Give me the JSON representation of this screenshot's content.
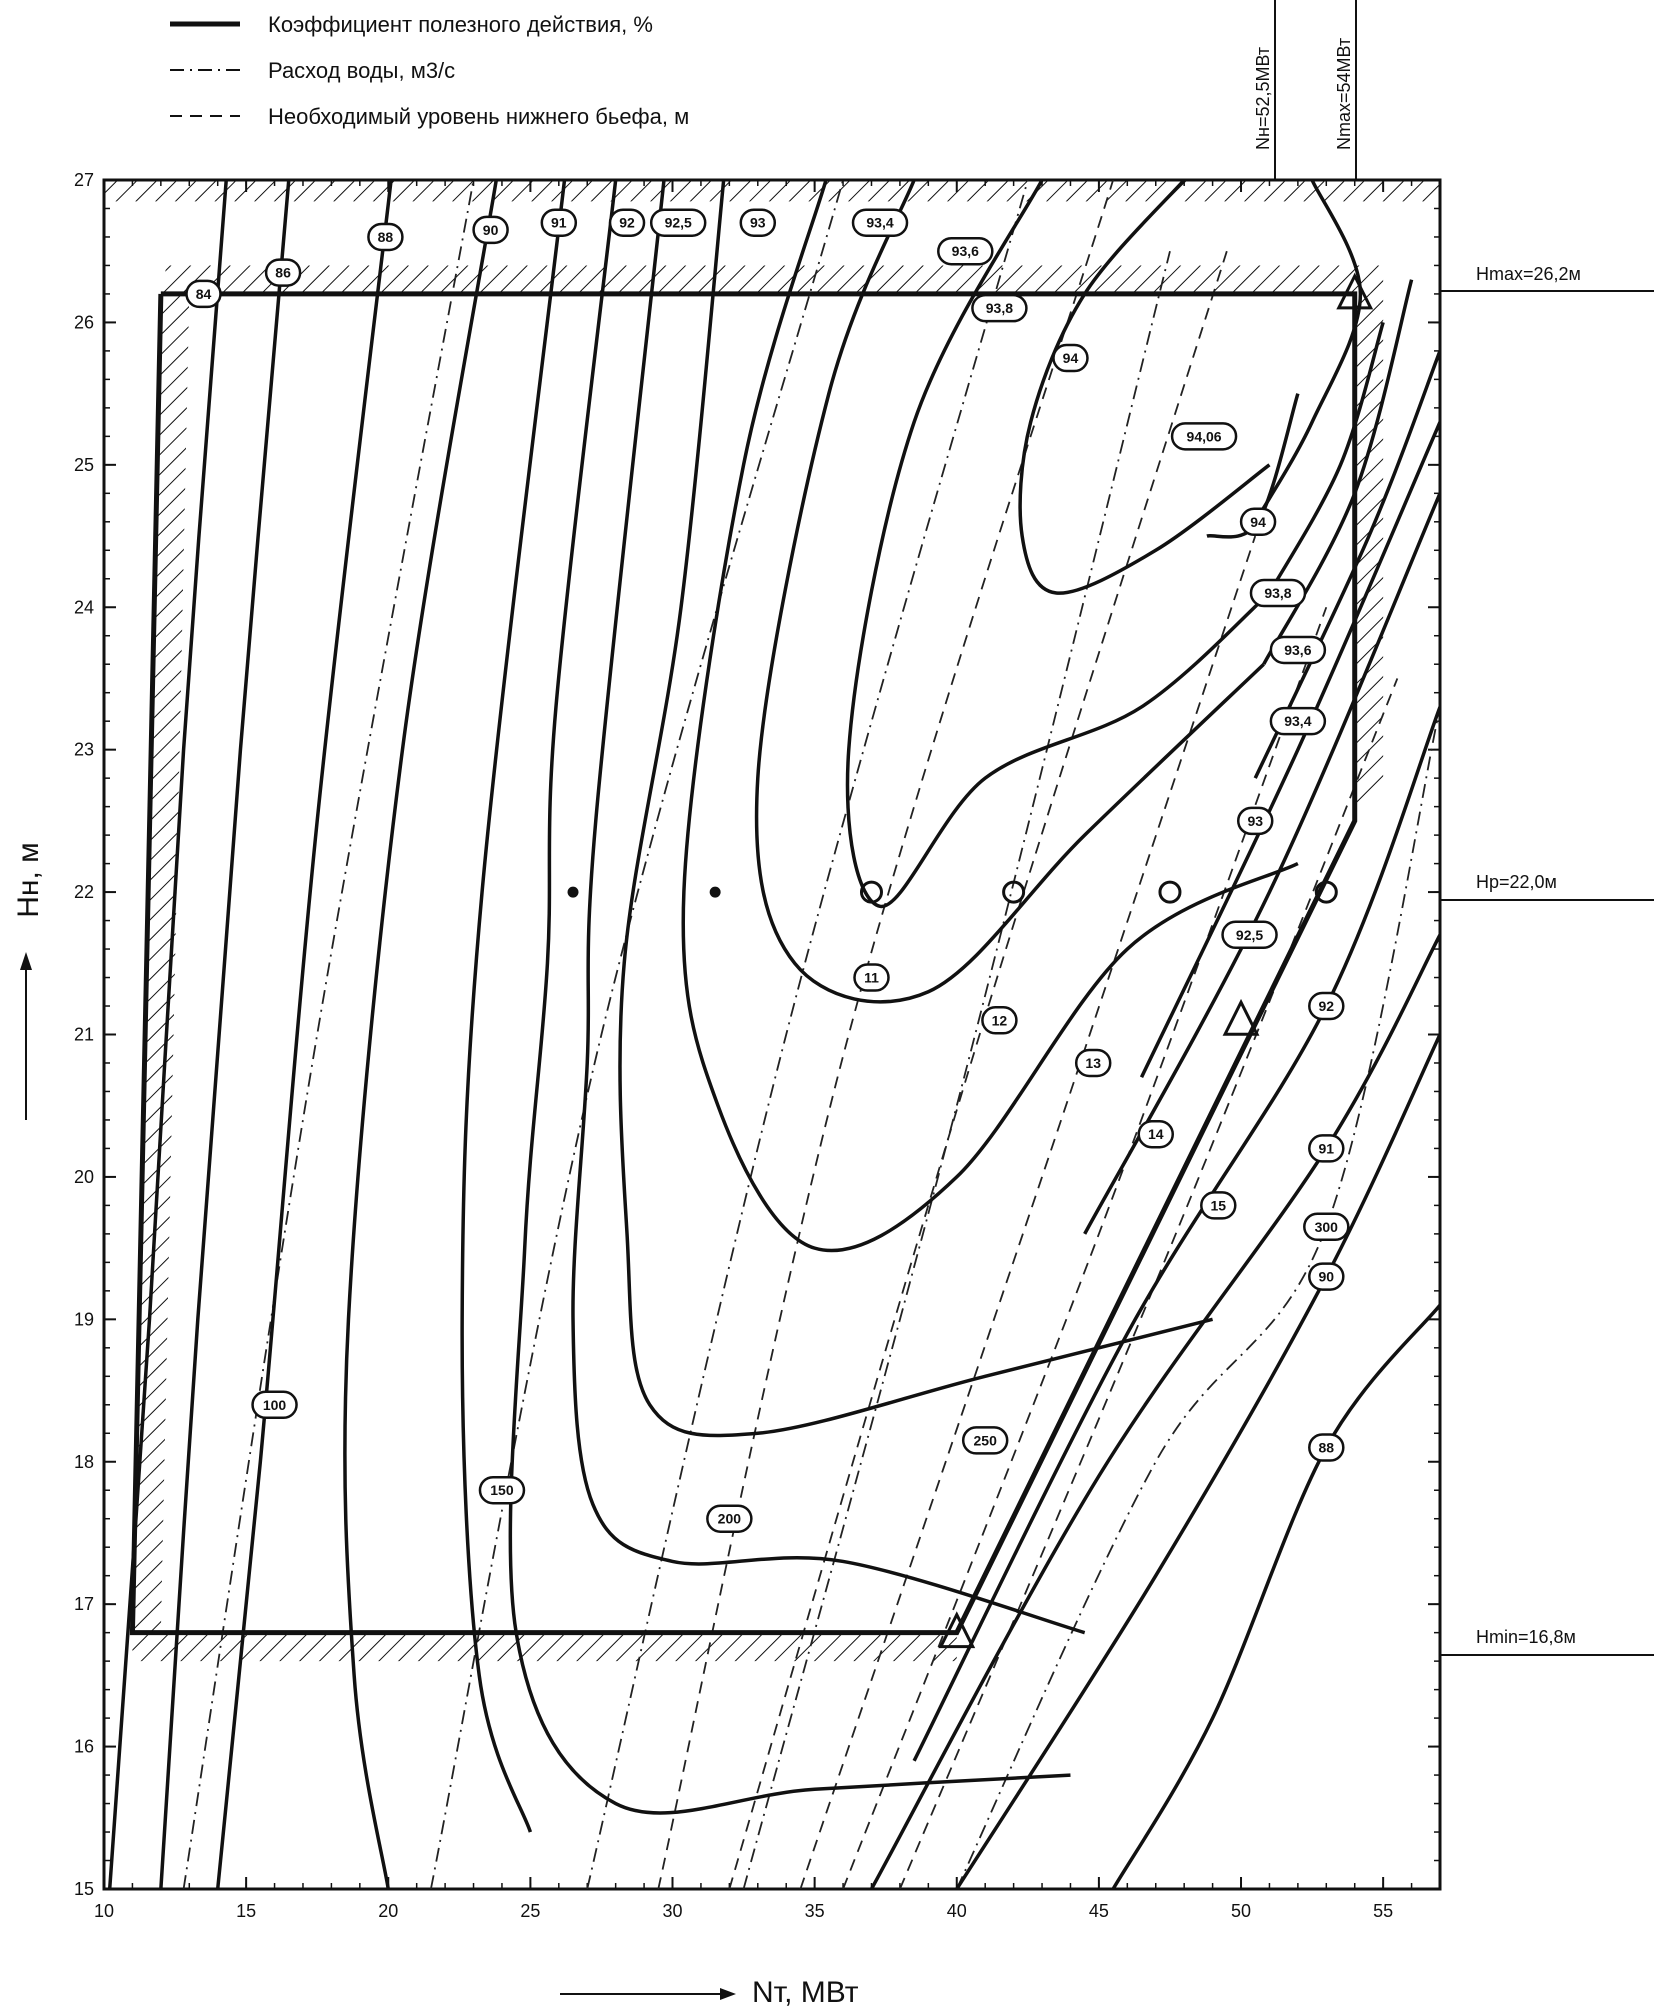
{
  "legend": [
    {
      "key": "efficiency",
      "label": "Коэффициент полезного действия, %"
    },
    {
      "key": "flow",
      "label": "Расход воды, м3/с"
    },
    {
      "key": "tailwater",
      "label": "Необходимый уровень нижнего бьефа, м"
    }
  ],
  "axes": {
    "x_label": "Nт, МВт",
    "y_label": "Hн, м",
    "x_ticks": [
      "10",
      "15",
      "20",
      "25",
      "30",
      "35",
      "40",
      "45",
      "50",
      "55"
    ],
    "y_ticks": [
      "15",
      "16",
      "17",
      "18",
      "19",
      "20",
      "21",
      "22",
      "23",
      "24",
      "25",
      "26",
      "27"
    ]
  },
  "markers": {
    "n_rated": "Nн=52,5МВт",
    "n_max": "Nmax=54МВт",
    "h_max": "Hmax=26,2м",
    "h_rated": "Hр=22,0м",
    "h_min": "Hmin=16,8м"
  },
  "chart_data": {
    "type": "line",
    "xlabel": "Nт, МВт",
    "ylabel": "Hн, м",
    "xlim": [
      10,
      57
    ],
    "ylim": [
      15,
      27
    ],
    "grid": false,
    "legend_position": "top-left",
    "reference_lines": {
      "N_rated_MW": 52.5,
      "N_max_MW": 54,
      "H_max_m": 26.2,
      "H_rated_m": 22.0,
      "H_min_m": 16.8
    },
    "operating_zone": [
      [
        12,
        26.2
      ],
      [
        54,
        26.2
      ],
      [
        54,
        22.5
      ],
      [
        40,
        16.8
      ],
      [
        11,
        16.8
      ],
      [
        12,
        26.2
      ]
    ],
    "efficiency_isolines": [
      {
        "value": "84",
        "label_at": [
          13.5,
          26.2
        ],
        "points": [
          [
            10.2,
            15
          ],
          [
            11.6,
            19
          ],
          [
            12.8,
            23
          ],
          [
            14.3,
            27
          ]
        ]
      },
      {
        "value": "86",
        "label_at": [
          16.3,
          26.35
        ],
        "points": [
          [
            12.0,
            15
          ],
          [
            13.3,
            19
          ],
          [
            14.8,
            23
          ],
          [
            16.5,
            27
          ]
        ]
      },
      {
        "value": "88",
        "label_at": [
          19.9,
          26.6
        ],
        "points": [
          [
            14.0,
            15
          ],
          [
            15.5,
            18
          ],
          [
            17.5,
            22.5
          ],
          [
            20.1,
            27
          ]
        ]
      },
      {
        "value": "90",
        "label_at": [
          23.6,
          26.65
        ],
        "points": [
          [
            20.0,
            15
          ],
          [
            18.8,
            16.5
          ],
          [
            18.6,
            19
          ],
          [
            20.5,
            23
          ],
          [
            23.8,
            27
          ]
        ]
      },
      {
        "value": "91",
        "label_at": [
          26.0,
          26.7
        ],
        "points": [
          [
            25.0,
            15.4
          ],
          [
            23.2,
            16.5
          ],
          [
            22.6,
            19
          ],
          [
            23.3,
            22
          ],
          [
            26.2,
            27
          ]
        ]
      },
      {
        "value": "92",
        "label_at": [
          28.4,
          26.7
        ],
        "points": [
          [
            44.0,
            15.8
          ],
          [
            35.0,
            15.7
          ],
          [
            28.0,
            15.6
          ],
          [
            24.5,
            16.8
          ],
          [
            24.8,
            19.5
          ],
          [
            25.6,
            21.5
          ],
          [
            25.9,
            23.3
          ],
          [
            28.0,
            27
          ]
        ]
      },
      {
        "value": "92,5",
        "label_at": [
          30.2,
          26.7
        ],
        "points": [
          [
            44.5,
            16.8
          ],
          [
            36.0,
            17.3
          ],
          [
            30.0,
            17.3
          ],
          [
            27.2,
            17.7
          ],
          [
            26.5,
            19.0
          ],
          [
            27.0,
            20.8
          ],
          [
            27.3,
            22.5
          ],
          [
            29.7,
            27
          ]
        ]
      },
      {
        "value": "93",
        "label_at": [
          33.0,
          26.7
        ],
        "points": [
          [
            49.0,
            19.0
          ],
          [
            41.0,
            18.6
          ],
          [
            33.0,
            18.2
          ],
          [
            29.2,
            18.4
          ],
          [
            28.4,
            19.6
          ],
          [
            28.3,
            21.5
          ],
          [
            30.3,
            24.0
          ],
          [
            31.8,
            27
          ]
        ]
      },
      {
        "value": "93,4",
        "label_at": [
          37.3,
          26.7
        ],
        "points": [
          [
            52.0,
            22.2
          ],
          [
            46.0,
            21.6
          ],
          [
            40.0,
            20.0
          ],
          [
            35.0,
            19.5
          ],
          [
            31.6,
            20.5
          ],
          [
            30.4,
            22.0
          ],
          [
            32.5,
            25.0
          ],
          [
            35.4,
            27
          ]
        ]
      },
      {
        "value": "93,6",
        "label_at": [
          40.3,
          26.5
        ],
        "points": [
          [
            50.8,
            23.6
          ],
          [
            44.5,
            22.4
          ],
          [
            39.0,
            21.3
          ],
          [
            34.3,
            21.5
          ],
          [
            33.0,
            22.8
          ],
          [
            35.5,
            25.5
          ],
          [
            38.5,
            27
          ]
        ]
      },
      {
        "value": "93,8",
        "label_at": [
          41.5,
          26.1
        ],
        "points": [
          [
            51.0,
            24.1
          ],
          [
            46.5,
            23.3
          ],
          [
            41.0,
            22.8
          ],
          [
            37.3,
            21.9
          ],
          [
            36.2,
            23.0
          ],
          [
            38.5,
            25.3
          ],
          [
            43.0,
            27
          ]
        ]
      },
      {
        "value": "94",
        "label_at": [
          44.0,
          25.75
        ],
        "points": [
          [
            51.0,
            25.0
          ],
          [
            47.0,
            24.4
          ],
          [
            43.5,
            24.1
          ],
          [
            42.3,
            24.5
          ],
          [
            42.6,
            25.3
          ],
          [
            44.5,
            26.2
          ],
          [
            48.0,
            27
          ]
        ]
      },
      {
        "value": "94,06",
        "label_at": [
          48.7,
          25.2
        ],
        "points": [
          [
            50.5,
            24.6
          ],
          [
            52.5,
            25.3
          ],
          [
            54.2,
            26.2
          ],
          [
            52.5,
            27
          ]
        ]
      },
      {
        "value": "94",
        "label_at": [
          50.6,
          24.6
        ],
        "points": [
          [
            48.8,
            24.5
          ],
          [
            50.6,
            24.6
          ],
          [
            52.0,
            25.5
          ]
        ]
      },
      {
        "value": "93,8",
        "label_at": [
          51.3,
          24.1
        ],
        "points": [
          [
            51.0,
            24.1
          ],
          [
            53.5,
            25.0
          ],
          [
            55.0,
            26.0
          ]
        ]
      },
      {
        "value": "93,6",
        "label_at": [
          52.0,
          23.7
        ],
        "points": [
          [
            50.8,
            23.6
          ],
          [
            54.0,
            24.8
          ],
          [
            56.0,
            26.3
          ]
        ]
      },
      {
        "value": "93,4",
        "label_at": [
          52.0,
          23.2
        ],
        "points": [
          [
            50.5,
            22.8
          ],
          [
            54.5,
            24.5
          ],
          [
            57.0,
            25.8
          ]
        ]
      },
      {
        "value": "93",
        "label_at": [
          50.5,
          22.5
        ],
        "points": [
          [
            46.5,
            20.7
          ],
          [
            52.0,
            23.0
          ],
          [
            57.0,
            25.3
          ]
        ]
      },
      {
        "value": "92,5",
        "label_at": [
          50.3,
          21.7
        ],
        "points": [
          [
            44.5,
            19.6
          ],
          [
            51.0,
            22.0
          ],
          [
            57.0,
            24.8
          ]
        ]
      },
      {
        "value": "92",
        "label_at": [
          53.0,
          21.2
        ],
        "points": [
          [
            38.5,
            15.9
          ],
          [
            46.0,
            18.9
          ],
          [
            53.0,
            21.2
          ],
          [
            57.0,
            23.3
          ]
        ]
      },
      {
        "value": "91",
        "label_at": [
          53.0,
          20.2
        ],
        "points": [
          [
            37.0,
            15.0
          ],
          [
            45.0,
            17.9
          ],
          [
            53.0,
            20.2
          ],
          [
            57.0,
            21.7
          ]
        ]
      },
      {
        "value": "90",
        "label_at": [
          53.0,
          19.3
        ],
        "points": [
          [
            40.0,
            15.0
          ],
          [
            47.0,
            17.2
          ],
          [
            53.0,
            19.3
          ],
          [
            57.0,
            21.0
          ]
        ]
      },
      {
        "value": "88",
        "label_at": [
          53.0,
          18.1
        ],
        "points": [
          [
            45.5,
            15.0
          ],
          [
            49.0,
            16.2
          ],
          [
            53.0,
            18.1
          ],
          [
            57.0,
            19.1
          ]
        ]
      }
    ],
    "flow_isolines": [
      {
        "value": "100",
        "label_at": [
          16.0,
          18.4
        ],
        "points": [
          [
            12.8,
            15
          ],
          [
            17.5,
            21
          ],
          [
            23.0,
            27
          ]
        ]
      },
      {
        "value": "150",
        "label_at": [
          24.0,
          17.8
        ],
        "points": [
          [
            21.5,
            15
          ],
          [
            27.5,
            21
          ],
          [
            36.0,
            27
          ]
        ]
      },
      {
        "value": "200",
        "label_at": [
          32.0,
          17.6
        ],
        "points": [
          [
            27.0,
            15
          ],
          [
            34.0,
            21
          ],
          [
            42.5,
            27
          ]
        ]
      },
      {
        "value": "250",
        "label_at": [
          41.0,
          18.15
        ],
        "points": [
          [
            32.5,
            15
          ],
          [
            40.0,
            20.5
          ],
          [
            47.5,
            26.5
          ]
        ]
      },
      {
        "value": "300",
        "label_at": [
          53.0,
          19.65
        ],
        "points": [
          [
            40.0,
            15
          ],
          [
            47.0,
            18.0
          ],
          [
            53.0,
            19.65
          ],
          [
            57.0,
            23.3
          ]
        ]
      }
    ],
    "tailwater_isolines": [
      {
        "value": "11",
        "label_at": [
          37.0,
          21.4
        ],
        "points": [
          [
            29.5,
            15
          ],
          [
            36.2,
            21.0
          ],
          [
            45.5,
            27
          ]
        ]
      },
      {
        "value": "12",
        "label_at": [
          41.5,
          21.1
        ],
        "points": [
          [
            32.0,
            15
          ],
          [
            40.5,
            20.8
          ],
          [
            49.5,
            26.5
          ]
        ]
      },
      {
        "value": "13",
        "label_at": [
          44.8,
          20.8
        ],
        "points": [
          [
            34.5,
            15
          ],
          [
            43.0,
            20.0
          ],
          [
            50.5,
            24.5
          ]
        ]
      },
      {
        "value": "14",
        "label_at": [
          47.0,
          20.3
        ],
        "points": [
          [
            36.0,
            15
          ],
          [
            45.0,
            19.6
          ],
          [
            53.0,
            24.0
          ]
        ]
      },
      {
        "value": "15",
        "label_at": [
          49.2,
          19.8
        ],
        "points": [
          [
            38.0,
            15
          ],
          [
            47.5,
            19.5
          ],
          [
            55.5,
            23.5
          ]
        ]
      }
    ],
    "measurement_points": [
      [
        26.5,
        22.0
      ],
      [
        31.5,
        22.0
      ],
      [
        37.0,
        22.0
      ],
      [
        42.0,
        22.0
      ],
      [
        47.5,
        22.0
      ],
      [
        53.0,
        22.0
      ]
    ]
  }
}
